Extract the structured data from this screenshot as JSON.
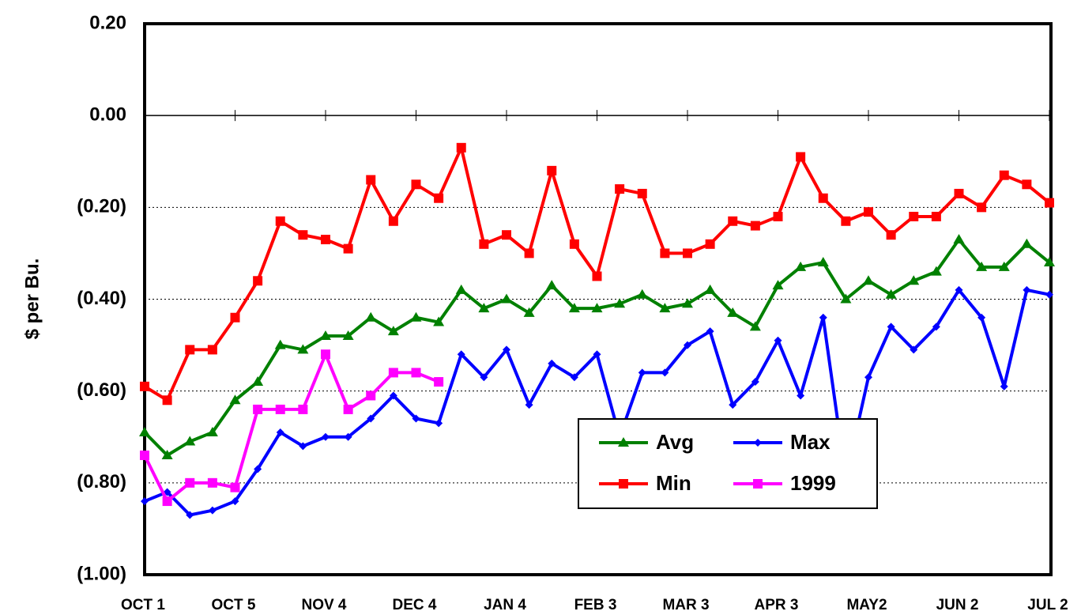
{
  "chart_data": {
    "type": "line",
    "y_label": "$ per Bu.",
    "categories": [
      "OCT 1",
      null,
      null,
      null,
      "OCT 5",
      null,
      null,
      null,
      "NOV 4",
      null,
      null,
      null,
      "DEC 4",
      null,
      null,
      null,
      "JAN 4",
      null,
      null,
      null,
      "FEB 3",
      null,
      null,
      null,
      "MAR 3",
      null,
      null,
      null,
      "APR 3",
      null,
      null,
      null,
      "MAY2",
      null,
      null,
      null,
      "JUN 2",
      null,
      null,
      null,
      "JUL 2"
    ],
    "series": [
      {
        "name": "Avg",
        "color": "#008000",
        "marker": "triangle",
        "values": [
          -0.69,
          -0.74,
          -0.71,
          -0.69,
          -0.62,
          -0.58,
          -0.5,
          -0.51,
          -0.48,
          -0.48,
          -0.44,
          -0.47,
          -0.44,
          -0.45,
          -0.38,
          -0.42,
          -0.4,
          -0.43,
          -0.37,
          -0.42,
          -0.42,
          -0.41,
          -0.39,
          -0.42,
          -0.41,
          -0.38,
          -0.43,
          -0.46,
          -0.37,
          -0.33,
          -0.32,
          -0.4,
          -0.36,
          -0.39,
          -0.36,
          -0.34,
          -0.27,
          -0.33,
          -0.33,
          -0.28,
          -0.32
        ]
      },
      {
        "name": "Max",
        "color": "#0000ff",
        "marker": "diamond",
        "values": [
          -0.84,
          -0.82,
          -0.87,
          -0.86,
          -0.84,
          -0.77,
          -0.69,
          -0.72,
          -0.7,
          -0.7,
          -0.66,
          -0.61,
          -0.66,
          -0.67,
          -0.52,
          -0.57,
          -0.51,
          -0.63,
          -0.54,
          -0.57,
          -0.52,
          -0.7,
          -0.56,
          -0.56,
          -0.5,
          -0.47,
          -0.63,
          -0.58,
          -0.49,
          -0.61,
          -0.44,
          -0.79,
          -0.57,
          -0.46,
          -0.51,
          -0.46,
          -0.38,
          -0.44,
          -0.59,
          -0.38,
          -0.39
        ]
      },
      {
        "name": "Min",
        "color": "#ff0000",
        "marker": "square",
        "values": [
          -0.59,
          -0.62,
          -0.51,
          -0.51,
          -0.44,
          -0.36,
          -0.23,
          -0.26,
          -0.27,
          -0.29,
          -0.14,
          -0.23,
          -0.15,
          -0.18,
          -0.07,
          -0.28,
          -0.26,
          -0.3,
          -0.12,
          -0.28,
          -0.35,
          -0.16,
          -0.17,
          -0.3,
          -0.3,
          -0.28,
          -0.23,
          -0.24,
          -0.22,
          -0.09,
          -0.18,
          -0.23,
          -0.21,
          -0.26,
          -0.22,
          -0.22,
          -0.17,
          -0.2,
          -0.13,
          -0.15,
          -0.19
        ]
      },
      {
        "name": "1999",
        "color": "#ff00ff",
        "marker": "square",
        "values": [
          -0.74,
          -0.84,
          -0.8,
          -0.8,
          -0.81,
          -0.64,
          -0.64,
          -0.64,
          -0.52,
          -0.64,
          -0.61,
          -0.56,
          -0.56,
          -0.58,
          null,
          null,
          null,
          null,
          null,
          null,
          null,
          null,
          null,
          null,
          null,
          null,
          null,
          null,
          null,
          null,
          null,
          null,
          null,
          null,
          null,
          null,
          null,
          null,
          null,
          null,
          null
        ]
      }
    ],
    "ylim": [
      -1.0,
      0.2
    ],
    "yticks": [
      {
        "value": -1.0,
        "label": "(1.00)"
      },
      {
        "value": -0.8,
        "label": "(0.80)"
      },
      {
        "value": -0.6,
        "label": "(0.60)"
      },
      {
        "value": -0.4,
        "label": "(0.40)"
      },
      {
        "value": -0.2,
        "label": "(0.20)"
      },
      {
        "value": 0,
        "label": "0.00"
      },
      {
        "value": 0.2,
        "label": "0.20"
      }
    ],
    "grid": true,
    "legend": "lower-right"
  }
}
